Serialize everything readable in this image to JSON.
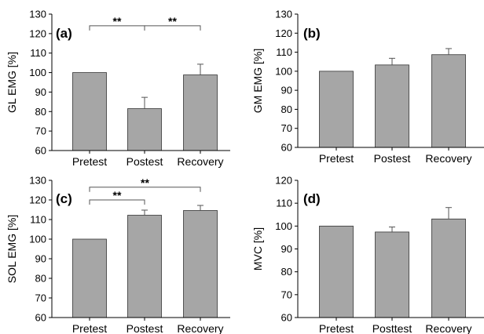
{
  "colors": {
    "bar_fill": "#a6a6a6",
    "axis": "#000000"
  },
  "chart_data": [
    {
      "type": "bar",
      "panel": "(a)",
      "ylabel": "GL EMG [%]",
      "categories": [
        "Pretest",
        "Postest",
        "Recovery"
      ],
      "values": [
        100,
        81.5,
        98.8
      ],
      "errors": [
        0,
        5.8,
        5.5
      ],
      "ylim": [
        60,
        130
      ],
      "yticks": [
        60,
        70,
        80,
        90,
        100,
        110,
        120,
        130
      ],
      "significance": [
        {
          "from": 0,
          "to": 1,
          "label": "**",
          "y": 124
        },
        {
          "from": 1,
          "to": 2,
          "label": "**",
          "y": 124
        }
      ]
    },
    {
      "type": "bar",
      "panel": "(b)",
      "ylabel": "GM EMG [%]",
      "categories": [
        "Pretest",
        "Postest",
        "Recovery"
      ],
      "values": [
        100,
        103.3,
        108.7
      ],
      "errors": [
        0,
        3.5,
        3.2
      ],
      "ylim": [
        60,
        130
      ],
      "yticks": [
        60,
        70,
        80,
        90,
        100,
        110,
        120,
        130
      ],
      "significance": []
    },
    {
      "type": "bar",
      "panel": "(c)",
      "ylabel": "SOL EMG [%]",
      "categories": [
        "Pretest",
        "Postest",
        "Recovery"
      ],
      "values": [
        100,
        112.2,
        114.6
      ],
      "errors": [
        0,
        2.6,
        2.6
      ],
      "ylim": [
        60,
        130
      ],
      "yticks": [
        60,
        70,
        80,
        90,
        100,
        110,
        120,
        130
      ],
      "significance": [
        {
          "from": 0,
          "to": 1,
          "label": "**",
          "y": 120
        },
        {
          "from": 0,
          "to": 2,
          "label": "**",
          "y": 126.5
        }
      ]
    },
    {
      "type": "bar",
      "panel": "(d)",
      "ylabel": "MVC [%]",
      "categories": [
        "Pretest",
        "Posttest",
        "Recovery"
      ],
      "values": [
        100,
        97.4,
        103.1
      ],
      "errors": [
        0,
        2.2,
        5.0
      ],
      "ylim": [
        60,
        120
      ],
      "yticks": [
        60,
        70,
        80,
        90,
        100,
        110,
        120
      ],
      "significance": []
    }
  ]
}
